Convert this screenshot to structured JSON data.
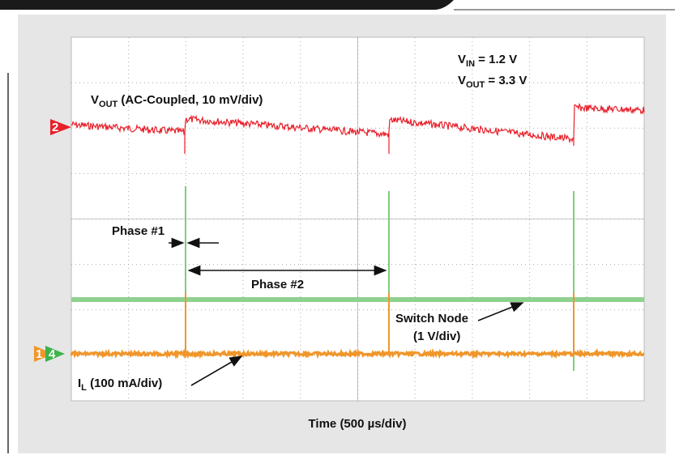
{
  "annotations": {
    "vin": {
      "main": "V",
      "sub": "IN",
      "rest": " = 1.2 V"
    },
    "vout_setting": {
      "main": "V",
      "sub": "OUT",
      "rest": " = 3.3 V"
    },
    "vout_trace": {
      "main": "V",
      "sub": "OUT",
      "rest": " (AC-Coupled, 10 mV/div)"
    },
    "phase1": "Phase #1",
    "phase2": "Phase #2",
    "switch_node": [
      "Switch Node",
      "(1 V/div)"
    ],
    "il_trace": {
      "main": "I",
      "sub": "L",
      "rest": " (100 mA/div)"
    }
  },
  "channels": [
    "2",
    "1",
    "4"
  ],
  "x_axis_label": "Time (500 µs/div)"
}
